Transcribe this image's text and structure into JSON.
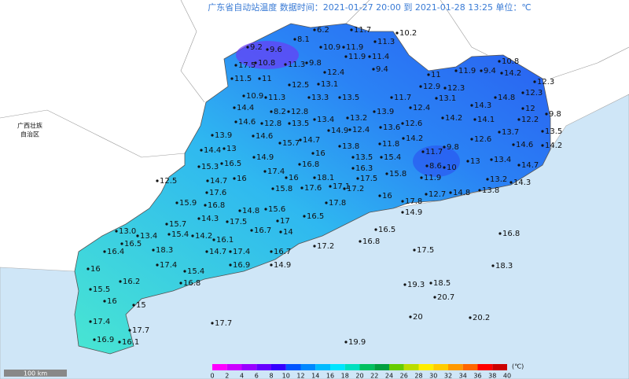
{
  "title": "广东省自动站温度  数据时间：2021-01-27 20:00 到 2021-01-28 13:25  单位：℃",
  "region_label": [
    "广西壮族",
    "自治区"
  ],
  "scale_label": "100 km",
  "stations": [
    "6.2",
    "8.1",
    "11.7",
    "10.2",
    "11.3",
    "9.2",
    "9.6",
    "10.9",
    "11.9",
    "17.5",
    "10.8",
    "11.3",
    "9.8",
    "11.9",
    "11.4",
    "12.4",
    "9.4",
    "11.5",
    "11",
    "10.8",
    "11.9",
    "9.4",
    "14.2",
    "11",
    "12.3",
    "12.5",
    "13.1",
    "12.9",
    "12.3",
    "12.3",
    "10.9",
    "11.3",
    "13.3",
    "13.5",
    "11.7",
    "13.1",
    "14.3",
    "14.8",
    "12",
    "9.8",
    "14.4",
    "8.2",
    "12.8",
    "12.4",
    "13.9",
    "14.6",
    "12.8",
    "13.5",
    "13.4",
    "13.2",
    "12.6",
    "14.2",
    "14.1",
    "12.2",
    "14.9",
    "12.4",
    "13.6",
    "13.9",
    "14.6",
    "15.7",
    "14.7",
    "13.8",
    "11.8",
    "14.2",
    "13.7",
    "13.5",
    "14.4",
    "13",
    "16",
    "15.4",
    "11.7",
    "9.8",
    "12.6",
    "14.6",
    "14.2",
    "14.9",
    "13.5",
    "15.3",
    "16.5",
    "16.8",
    "16.3",
    "8.6",
    "10",
    "13",
    "13.4",
    "14.7",
    "12.5",
    "17.4",
    "18.1",
    "15.8",
    "11.9",
    "13.2",
    "14.3",
    "14.7",
    "16",
    "16",
    "17.1",
    "17.5",
    "17.6",
    "15.8",
    "17.6",
    "17.2",
    "12.7",
    "14.8",
    "13.8",
    "16",
    "17.8",
    "16.8",
    "15.9",
    "14.8",
    "15.6",
    "17.8",
    "14.3",
    "17.5",
    "17",
    "16.5",
    "14.9",
    "15.7",
    "15.4",
    "14.2",
    "16.1",
    "16.7",
    "14",
    "13.0",
    "13.4",
    "16.5",
    "16.8",
    "16.5",
    "18.3",
    "17.2",
    "16.8",
    "16.7",
    "16.4",
    "14.7",
    "17.4",
    "17.5",
    "17.4",
    "16.9",
    "14.9",
    "18.3",
    "16",
    "15.4",
    "16.2",
    "16.8",
    "19.3",
    "18.5",
    "15.5",
    "16",
    "15",
    "20.7",
    "17.4",
    "17.7",
    "17.7",
    "20",
    "20.2",
    "16.9",
    "16.1",
    "19.9"
  ],
  "legend": {
    "ticks": [
      0,
      2,
      4,
      6,
      8,
      10,
      12,
      14,
      16,
      18,
      20,
      22,
      24,
      26,
      28,
      30,
      32,
      34,
      36,
      38,
      40
    ],
    "colors": [
      "#ff00ff",
      "#cc00ff",
      "#9900ff",
      "#6600ff",
      "#3300ff",
      "#0055ff",
      "#0088ff",
      "#00bbff",
      "#00e5ff",
      "#00e0c0",
      "#00c060",
      "#00a040",
      "#66cc00",
      "#bbdd00",
      "#ffee00",
      "#ffcc00",
      "#ff9900",
      "#ff6600",
      "#ff0000",
      "#cc0000"
    ],
    "unit": "(℃)"
  }
}
